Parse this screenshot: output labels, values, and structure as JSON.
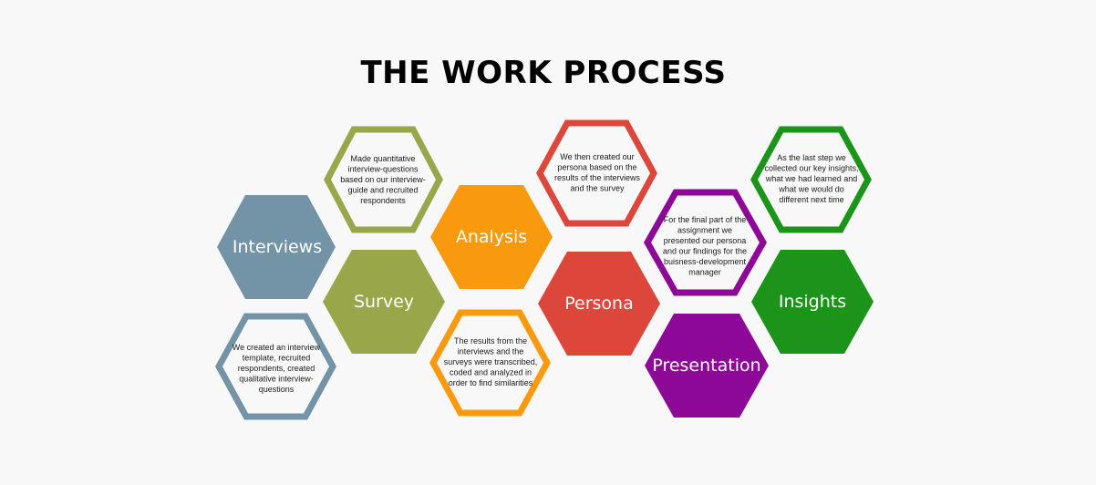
{
  "title": "THE WORK PROCESS",
  "steps": [
    {
      "key": "interviews",
      "label": "Interviews",
      "color": "#7393a7",
      "description_lines": [
        "We created an interview",
        "template, recruited",
        "respondents, created",
        "qualitative interview-",
        "questions"
      ]
    },
    {
      "key": "survey",
      "label": "Survey",
      "color": "#9aa64a",
      "description_lines": [
        "Made quantitative",
        "interview-questions",
        "based on our interview-",
        "guide and recruited",
        "respondents"
      ]
    },
    {
      "key": "analysis",
      "label": "Analysis",
      "color": "#f99a0e",
      "description_lines": [
        "The results from the",
        "interviews and the",
        "surveys were transcribed,",
        "coded and analyzed in",
        "order to find similarities"
      ]
    },
    {
      "key": "persona",
      "label": "Persona",
      "color": "#dd463a",
      "description_lines": [
        "We then created our",
        "persona based on the",
        "results of the interviews",
        "and the survey"
      ]
    },
    {
      "key": "presentation",
      "label": "Presentation",
      "color": "#8e0898",
      "description_lines": [
        "For the final part of the",
        "assignment we",
        "presented our persona",
        "and our findings for the",
        "buisness-development",
        "manager"
      ]
    },
    {
      "key": "insights",
      "label": "Insights",
      "color": "#1b9419",
      "description_lines": [
        "As the last step we",
        "collected our key insights,",
        "what we had learned and",
        "what we would do",
        "different next time"
      ]
    }
  ]
}
